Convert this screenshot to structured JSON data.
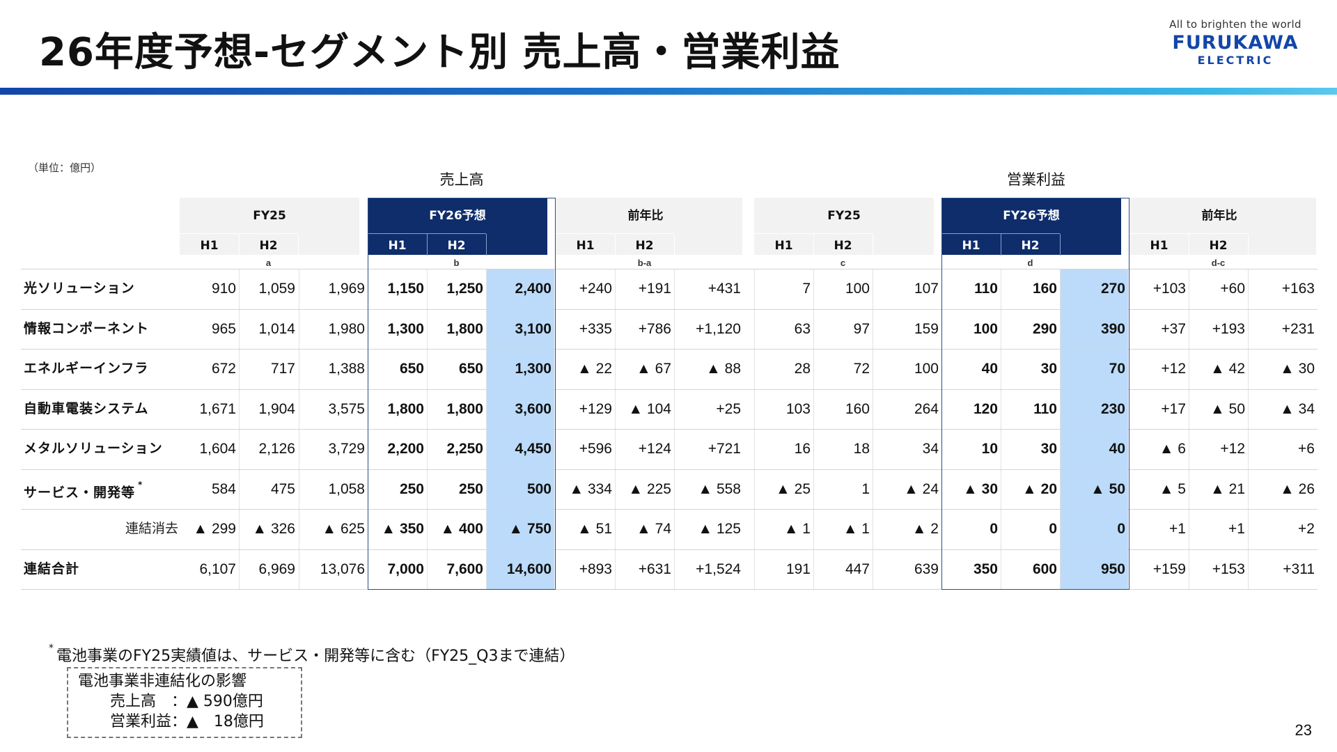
{
  "title": "26年度予想-セグメント別 売上高・営業利益",
  "logo": {
    "tagline": "All to brighten the world",
    "brand": "FURUKAWA",
    "sub": "ELECTRIC"
  },
  "unit": "（単位：億円）",
  "sections": {
    "sales": "売上高",
    "op": "営業利益"
  },
  "headers": {
    "groups": [
      "FY25",
      "FY26予想",
      "前年比",
      "FY25",
      "FY26予想",
      "前年比"
    ],
    "h1": "H1",
    "h2": "H2",
    "letters": [
      "a",
      "b",
      "b-a",
      "c",
      "d",
      "d-c"
    ]
  },
  "rows": [
    {
      "label": "光ソリューション",
      "values": [
        "910",
        "1,059",
        "1,969",
        "1,150",
        "1,250",
        "2,400",
        "+240",
        "+191",
        "+431",
        "7",
        "100",
        "107",
        "110",
        "160",
        "270",
        "+103",
        "+60",
        "+163"
      ]
    },
    {
      "label": "情報コンポーネント",
      "values": [
        "965",
        "1,014",
        "1,980",
        "1,300",
        "1,800",
        "3,100",
        "+335",
        "+786",
        "+1,120",
        "63",
        "97",
        "159",
        "100",
        "290",
        "390",
        "+37",
        "+193",
        "+231"
      ]
    },
    {
      "label": "エネルギーインフラ",
      "values": [
        "672",
        "717",
        "1,388",
        "650",
        "650",
        "1,300",
        "▲ 22",
        "▲ 67",
        "▲ 88",
        "28",
        "72",
        "100",
        "40",
        "30",
        "70",
        "+12",
        "▲ 42",
        "▲ 30"
      ]
    },
    {
      "label": "自動車電装システム",
      "values": [
        "1,671",
        "1,904",
        "3,575",
        "1,800",
        "1,800",
        "3,600",
        "+129",
        "▲ 104",
        "+25",
        "103",
        "160",
        "264",
        "120",
        "110",
        "230",
        "+17",
        "▲ 50",
        "▲ 34"
      ]
    },
    {
      "label": "メタルソリューション",
      "values": [
        "1,604",
        "2,126",
        "3,729",
        "2,200",
        "2,250",
        "4,450",
        "+596",
        "+124",
        "+721",
        "16",
        "18",
        "34",
        "10",
        "30",
        "40",
        "▲ 6",
        "+12",
        "+6"
      ]
    },
    {
      "label": "サービス・開発等",
      "mark": "*",
      "values": [
        "584",
        "475",
        "1,058",
        "250",
        "250",
        "500",
        "▲ 334",
        "▲ 225",
        "▲ 558",
        "▲ 25",
        "1",
        "▲ 24",
        "▲ 30",
        "▲ 20",
        "▲ 50",
        "▲ 5",
        "▲ 21",
        "▲ 26"
      ]
    },
    {
      "label": "連結消去",
      "values": [
        "▲ 299",
        "▲ 326",
        "▲ 625",
        "▲ 350",
        "▲ 400",
        "▲ 750",
        "▲ 51",
        "▲ 74",
        "▲ 125",
        "▲ 1",
        "▲ 1",
        "▲ 2",
        "0",
        "0",
        "0",
        "+1",
        "+1",
        "+2"
      ]
    },
    {
      "label": "連結合計",
      "values": [
        "6,107",
        "6,969",
        "13,076",
        "7,000",
        "7,600",
        "14,600",
        "+893",
        "+631",
        "+1,524",
        "191",
        "447",
        "639",
        "350",
        "600",
        "950",
        "+159",
        "+153",
        "+311"
      ]
    }
  ],
  "footnote": {
    "mark": "*",
    "text": "電池事業のFY25実績値は、サービス・開発等に含む（FY25_Q3まで連結）"
  },
  "box": {
    "title": "電池事業非連結化の影響",
    "line1": "売上高　：▲ 590億円",
    "line2": "営業利益：▲　18億円"
  },
  "page_number": "23"
}
